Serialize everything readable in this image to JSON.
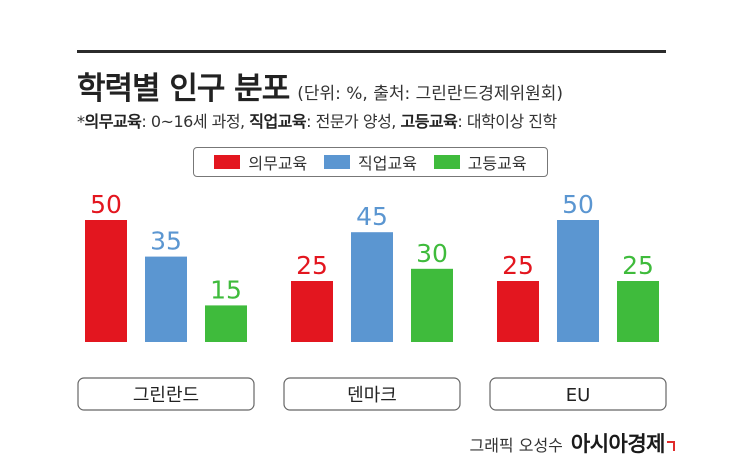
{
  "header": {
    "title": "학력별 인구 분포",
    "unit_note": "(단위: %, 출처: 그린란드경제위원회)"
  },
  "note": {
    "prefix": "*",
    "term1": "의무교육",
    "desc1": ": 0~16세 과정, ",
    "term2": "직업교육",
    "desc2": ": 전문가 양성, ",
    "term3": "고등교육",
    "desc3": ": 대학이상 진학"
  },
  "colors": {
    "red": "#e3161f",
    "blue": "#5b96d1",
    "green": "#3fbb3c"
  },
  "chart_data": {
    "type": "bar",
    "categories": [
      "그린란드",
      "덴마크",
      "EU"
    ],
    "series": [
      {
        "name": "의무교육",
        "color": "#e3161f",
        "values": [
          50,
          25,
          25
        ]
      },
      {
        "name": "직업교육",
        "color": "#5b96d1",
        "values": [
          35,
          45,
          50
        ]
      },
      {
        "name": "고등교육",
        "color": "#3fbb3c",
        "values": [
          15,
          30,
          25
        ]
      }
    ],
    "title": "학력별 인구 분포",
    "legend": "top-center",
    "ylim": [
      0,
      50
    ],
    "grid": false
  },
  "footer": {
    "credit": "그래픽 오성수",
    "logo": "아시아경제"
  }
}
